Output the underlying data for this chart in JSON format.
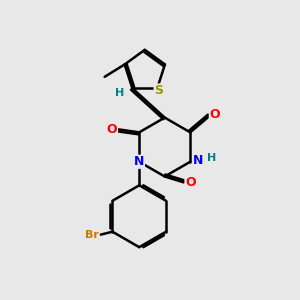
{
  "bg_color": "#e8e8e8",
  "bond_color": "#000000",
  "bond_width": 1.8,
  "dbo": 0.07,
  "atom_colors": {
    "S": "#999900",
    "N": "#0000ff",
    "O": "#ff0000",
    "Br": "#cc7700",
    "H": "#008080",
    "C": "#000000"
  },
  "font_size": 9,
  "fig_bg": "#e8e8e8",
  "xlim": [
    0,
    10
  ],
  "ylim": [
    0,
    10
  ]
}
